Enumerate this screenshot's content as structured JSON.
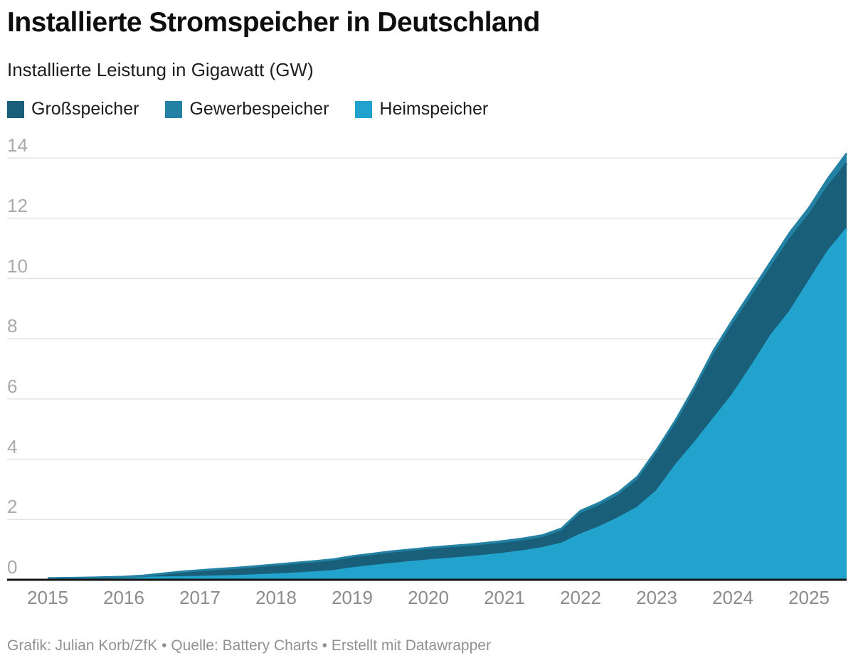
{
  "header": {
    "title": "Installierte Stromspeicher in Deutschland",
    "subtitle": "Installierte Leistung in Gigawatt (GW)"
  },
  "footer": {
    "credit": "Grafik: Julian Korb/ZfK • Quelle: Battery Charts • Erstellt mit Datawrapper"
  },
  "chart_data": {
    "type": "area",
    "stacked": true,
    "title": "Installierte Stromspeicher in Deutschland",
    "ylabel": "Installierte Leistung in Gigawatt (GW)",
    "x": [
      2015.0,
      2015.25,
      2015.5,
      2015.75,
      2016.0,
      2016.25,
      2016.5,
      2016.75,
      2017.0,
      2017.25,
      2017.5,
      2017.75,
      2018.0,
      2018.25,
      2018.5,
      2018.75,
      2019.0,
      2019.25,
      2019.5,
      2019.75,
      2020.0,
      2020.25,
      2020.5,
      2020.75,
      2021.0,
      2021.25,
      2021.5,
      2021.75,
      2022.0,
      2022.25,
      2022.5,
      2022.75,
      2023.0,
      2023.25,
      2023.5,
      2023.75,
      2024.0,
      2024.25,
      2024.5,
      2024.75,
      2025.0,
      2025.25,
      2025.5
    ],
    "series": [
      {
        "id": "grossspeicher",
        "name": "Großspeicher",
        "color": "#1a5f7a",
        "values": [
          0.015,
          0.018,
          0.022,
          0.026,
          0.032,
          0.06,
          0.11,
          0.16,
          0.195,
          0.22,
          0.24,
          0.26,
          0.285,
          0.305,
          0.32,
          0.33,
          0.335,
          0.34,
          0.345,
          0.345,
          0.345,
          0.345,
          0.34,
          0.335,
          0.33,
          0.33,
          0.33,
          0.4,
          0.68,
          0.7,
          0.74,
          0.9,
          1.23,
          1.35,
          1.7,
          2.1,
          2.3,
          2.3,
          2.25,
          2.4,
          2.2,
          2.15,
          2.17
        ]
      },
      {
        "id": "gewerbespeicher",
        "name": "Gewerbespeicher",
        "color": "#2381a3",
        "values": [
          0.005,
          0.006,
          0.007,
          0.008,
          0.01,
          0.013,
          0.016,
          0.02,
          0.025,
          0.03,
          0.035,
          0.04,
          0.045,
          0.05,
          0.055,
          0.06,
          0.065,
          0.068,
          0.07,
          0.073,
          0.075,
          0.078,
          0.08,
          0.083,
          0.086,
          0.09,
          0.095,
          0.1,
          0.105,
          0.11,
          0.115,
          0.125,
          0.14,
          0.15,
          0.16,
          0.17,
          0.18,
          0.195,
          0.21,
          0.225,
          0.24,
          0.27,
          0.33
        ]
      },
      {
        "id": "heimspeicher",
        "name": "Heimspeicher",
        "color": "#22a3cd",
        "values": [
          0.03,
          0.035,
          0.04,
          0.048,
          0.055,
          0.065,
          0.075,
          0.085,
          0.095,
          0.11,
          0.125,
          0.15,
          0.175,
          0.205,
          0.24,
          0.285,
          0.38,
          0.45,
          0.52,
          0.58,
          0.64,
          0.69,
          0.74,
          0.8,
          0.87,
          0.95,
          1.05,
          1.2,
          1.5,
          1.75,
          2.05,
          2.4,
          2.94,
          3.8,
          4.55,
          5.35,
          6.15,
          7.1,
          8.1,
          8.9,
          9.9,
          10.9,
          11.65
        ]
      }
    ],
    "stack_order": [
      "heimspeicher",
      "grossspeicher",
      "gewerbespeicher"
    ],
    "legend_order": [
      "grossspeicher",
      "gewerbespeicher",
      "heimspeicher"
    ],
    "y_axis": {
      "ticks": [
        0,
        2,
        4,
        6,
        8,
        10,
        12,
        14
      ],
      "min": 0,
      "max": 14.3,
      "unit": "GW"
    },
    "x_axis": {
      "ticks": [
        2015,
        2016,
        2017,
        2018,
        2019,
        2020,
        2021,
        2022,
        2023,
        2024,
        2025
      ],
      "min": 2015,
      "max": 2025.5
    },
    "grid": true,
    "legend_position": "top",
    "grid_color": "#e3e3e3",
    "baseline_color": "#141414",
    "tick_label_color_y": "#aaaaaa",
    "tick_label_color_x": "#8c8c8c"
  }
}
